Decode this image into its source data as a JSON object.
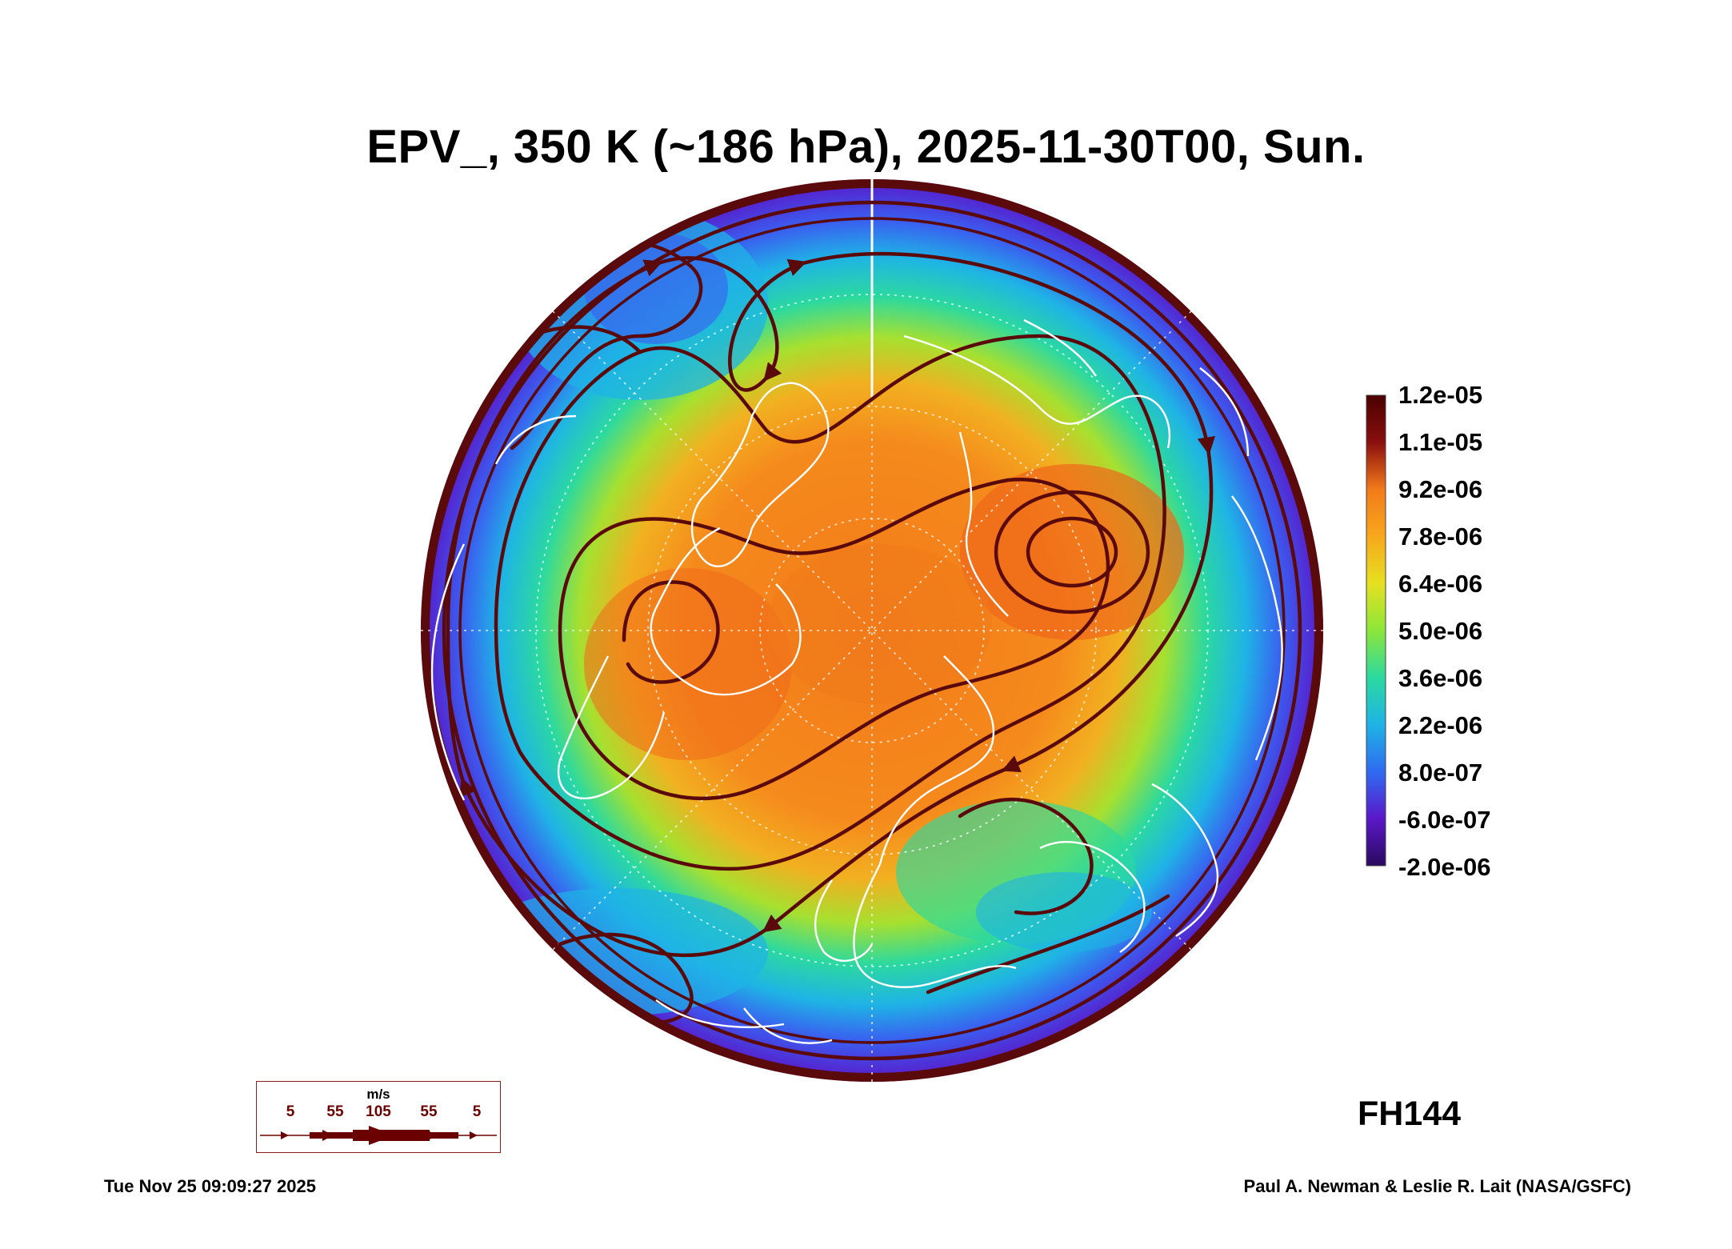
{
  "title": "EPV_, 350 K (~186 hPa), 2025-11-30T00, Sun.",
  "colorbar": {
    "labels": [
      "1.2e-05",
      "1.1e-05",
      "9.2e-06",
      "7.8e-06",
      "6.4e-06",
      "5.0e-06",
      "3.6e-06",
      "2.2e-06",
      "8.0e-07",
      "-6.0e-07",
      "-2.0e-06"
    ],
    "colors": [
      "#2a0a5e",
      "#5a18c8",
      "#2f6bf0",
      "#1fb3e6",
      "#2bd9a0",
      "#8ce63a",
      "#e6e020",
      "#f7a81c",
      "#f27a1a",
      "#d8320e",
      "#8a0f0f",
      "#4a0000"
    ]
  },
  "wind_legend": {
    "unit": "m/s",
    "values": [
      "5",
      "55",
      "105",
      "55",
      "5"
    ]
  },
  "forecast_hour": "FH144",
  "timestamp": "Tue Nov 25 09:09:27 2025",
  "credit": "Paul A. Newman & Leslie R. Lait (NASA/GSFC)",
  "colors": {
    "streamline": "#5a0a0a",
    "coast": "#ffffff",
    "polar": "#f07a1a"
  }
}
